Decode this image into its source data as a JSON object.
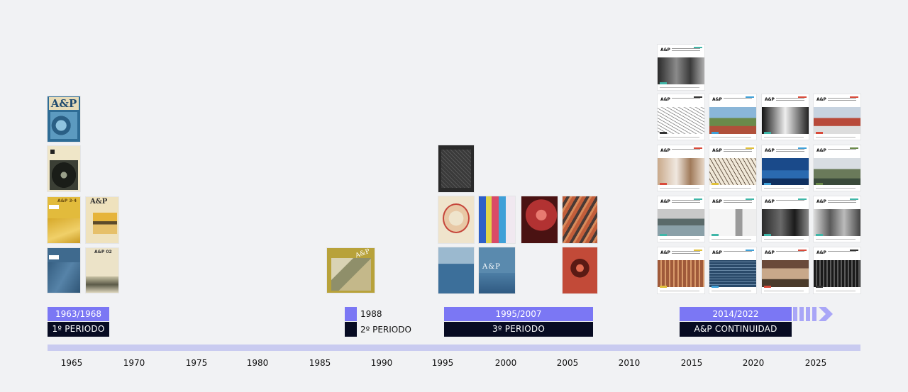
{
  "periods": [
    {
      "range": "1963/1968",
      "label": "1º PERIODO"
    },
    {
      "range": "1988",
      "label": "2º PERIODO"
    },
    {
      "range": "1995/2007",
      "label": "3º PERIODO"
    },
    {
      "range": "2014/2022",
      "label": "A&P CONTINUIDAD"
    }
  ],
  "years": [
    "1965",
    "1970",
    "1975",
    "1980",
    "1985",
    "1990",
    "1995",
    "2000",
    "2005",
    "2010",
    "2015",
    "2020",
    "2025"
  ],
  "covers_old": {
    "logo": "A&P"
  },
  "colors": {
    "accent": "#7b77f4",
    "dark": "#070b22",
    "axis": "#c9cbf0",
    "background": "#f1f2f4"
  }
}
